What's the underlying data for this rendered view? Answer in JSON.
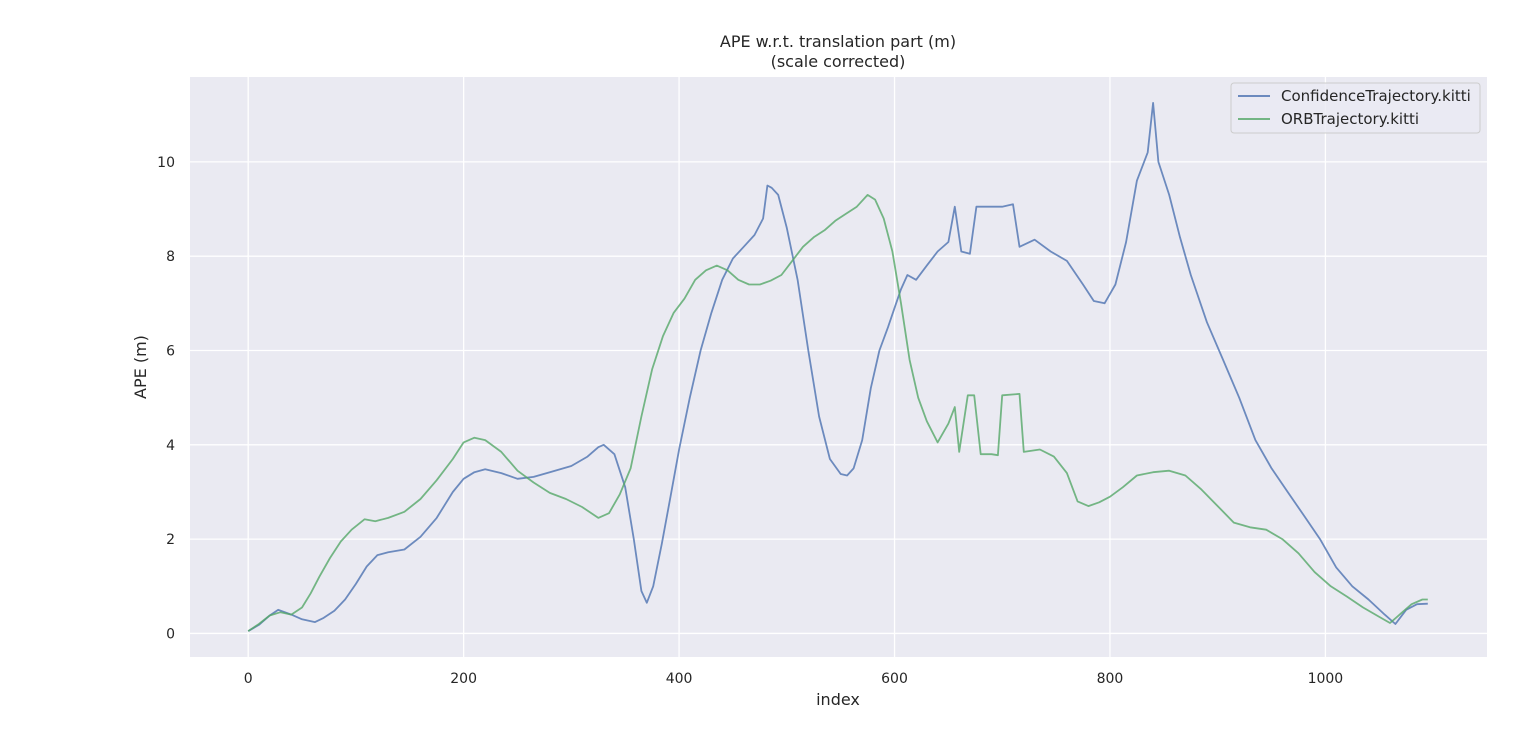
{
  "chart_data": {
    "type": "line",
    "title": "APE w.r.t. translation part (m)",
    "subtitle": "(scale corrected)",
    "xlabel": "index",
    "ylabel": "APE (m)",
    "xlim": [
      -54,
      1150
    ],
    "ylim": [
      -0.5,
      11.8
    ],
    "xticks": [
      0,
      200,
      400,
      600,
      800,
      1000
    ],
    "yticks": [
      0,
      2,
      4,
      6,
      8,
      10
    ],
    "grid": true,
    "legend_position": "top-right",
    "background": "#eaeaf2",
    "series": [
      {
        "name": "ConfidenceTrajectory.kitti",
        "color": "#4c72b0",
        "points": [
          [
            0,
            0.05
          ],
          [
            10,
            0.18
          ],
          [
            20,
            0.38
          ],
          [
            28,
            0.5
          ],
          [
            40,
            0.4
          ],
          [
            50,
            0.3
          ],
          [
            62,
            0.24
          ],
          [
            70,
            0.33
          ],
          [
            80,
            0.48
          ],
          [
            90,
            0.72
          ],
          [
            100,
            1.05
          ],
          [
            110,
            1.42
          ],
          [
            120,
            1.66
          ],
          [
            130,
            1.72
          ],
          [
            145,
            1.78
          ],
          [
            160,
            2.05
          ],
          [
            175,
            2.45
          ],
          [
            190,
            3.0
          ],
          [
            200,
            3.28
          ],
          [
            210,
            3.42
          ],
          [
            220,
            3.48
          ],
          [
            235,
            3.4
          ],
          [
            250,
            3.28
          ],
          [
            265,
            3.32
          ],
          [
            280,
            3.42
          ],
          [
            300,
            3.55
          ],
          [
            315,
            3.75
          ],
          [
            325,
            3.95
          ],
          [
            330,
            4.0
          ],
          [
            340,
            3.8
          ],
          [
            350,
            3.1
          ],
          [
            358,
            2.0
          ],
          [
            365,
            0.9
          ],
          [
            370,
            0.65
          ],
          [
            376,
            1.0
          ],
          [
            384,
            1.9
          ],
          [
            392,
            2.9
          ],
          [
            400,
            3.9
          ],
          [
            410,
            5.0
          ],
          [
            420,
            6.0
          ],
          [
            430,
            6.8
          ],
          [
            440,
            7.5
          ],
          [
            450,
            7.95
          ],
          [
            460,
            8.2
          ],
          [
            470,
            8.45
          ],
          [
            478,
            8.8
          ],
          [
            482,
            9.5
          ],
          [
            486,
            9.45
          ],
          [
            492,
            9.3
          ],
          [
            500,
            8.6
          ],
          [
            510,
            7.5
          ],
          [
            520,
            6.0
          ],
          [
            530,
            4.6
          ],
          [
            540,
            3.7
          ],
          [
            550,
            3.38
          ],
          [
            556,
            3.35
          ],
          [
            562,
            3.5
          ],
          [
            570,
            4.1
          ],
          [
            578,
            5.2
          ],
          [
            586,
            6.0
          ],
          [
            594,
            6.5
          ],
          [
            600,
            6.9
          ],
          [
            606,
            7.3
          ],
          [
            612,
            7.6
          ],
          [
            620,
            7.5
          ],
          [
            630,
            7.8
          ],
          [
            640,
            8.1
          ],
          [
            650,
            8.3
          ],
          [
            656,
            9.05
          ],
          [
            662,
            8.1
          ],
          [
            670,
            8.05
          ],
          [
            676,
            9.05
          ],
          [
            700,
            9.05
          ],
          [
            710,
            9.1
          ],
          [
            716,
            8.2
          ],
          [
            730,
            8.35
          ],
          [
            745,
            8.1
          ],
          [
            760,
            7.9
          ],
          [
            775,
            7.4
          ],
          [
            785,
            7.05
          ],
          [
            795,
            7.0
          ],
          [
            805,
            7.4
          ],
          [
            815,
            8.3
          ],
          [
            825,
            9.6
          ],
          [
            835,
            10.2
          ],
          [
            840,
            11.25
          ],
          [
            845,
            10.0
          ],
          [
            855,
            9.3
          ],
          [
            865,
            8.4
          ],
          [
            875,
            7.6
          ],
          [
            890,
            6.6
          ],
          [
            905,
            5.8
          ],
          [
            920,
            5.0
          ],
          [
            935,
            4.1
          ],
          [
            950,
            3.5
          ],
          [
            965,
            3.0
          ],
          [
            980,
            2.5
          ],
          [
            995,
            2.0
          ],
          [
            1010,
            1.4
          ],
          [
            1025,
            1.0
          ],
          [
            1040,
            0.72
          ],
          [
            1055,
            0.4
          ],
          [
            1065,
            0.2
          ],
          [
            1075,
            0.5
          ],
          [
            1085,
            0.62
          ],
          [
            1095,
            0.63
          ]
        ]
      },
      {
        "name": "ORBTrajectory.kitti",
        "color": "#55a868",
        "points": [
          [
            0,
            0.05
          ],
          [
            10,
            0.2
          ],
          [
            20,
            0.38
          ],
          [
            30,
            0.45
          ],
          [
            40,
            0.4
          ],
          [
            50,
            0.55
          ],
          [
            58,
            0.85
          ],
          [
            66,
            1.2
          ],
          [
            76,
            1.6
          ],
          [
            86,
            1.95
          ],
          [
            96,
            2.2
          ],
          [
            108,
            2.42
          ],
          [
            118,
            2.38
          ],
          [
            130,
            2.45
          ],
          [
            145,
            2.58
          ],
          [
            160,
            2.85
          ],
          [
            175,
            3.25
          ],
          [
            190,
            3.7
          ],
          [
            200,
            4.05
          ],
          [
            210,
            4.15
          ],
          [
            220,
            4.1
          ],
          [
            235,
            3.85
          ],
          [
            250,
            3.45
          ],
          [
            265,
            3.2
          ],
          [
            280,
            2.98
          ],
          [
            295,
            2.85
          ],
          [
            310,
            2.68
          ],
          [
            325,
            2.45
          ],
          [
            335,
            2.55
          ],
          [
            345,
            2.95
          ],
          [
            355,
            3.5
          ],
          [
            365,
            4.6
          ],
          [
            375,
            5.6
          ],
          [
            385,
            6.3
          ],
          [
            395,
            6.8
          ],
          [
            405,
            7.1
          ],
          [
            415,
            7.5
          ],
          [
            425,
            7.7
          ],
          [
            435,
            7.8
          ],
          [
            445,
            7.7
          ],
          [
            455,
            7.5
          ],
          [
            465,
            7.4
          ],
          [
            475,
            7.4
          ],
          [
            485,
            7.48
          ],
          [
            495,
            7.6
          ],
          [
            505,
            7.9
          ],
          [
            515,
            8.2
          ],
          [
            525,
            8.4
          ],
          [
            535,
            8.55
          ],
          [
            545,
            8.75
          ],
          [
            555,
            8.9
          ],
          [
            565,
            9.05
          ],
          [
            575,
            9.3
          ],
          [
            582,
            9.2
          ],
          [
            590,
            8.8
          ],
          [
            598,
            8.1
          ],
          [
            606,
            7.0
          ],
          [
            614,
            5.8
          ],
          [
            622,
            5.0
          ],
          [
            630,
            4.5
          ],
          [
            640,
            4.05
          ],
          [
            650,
            4.45
          ],
          [
            656,
            4.8
          ],
          [
            660,
            3.85
          ],
          [
            668,
            5.05
          ],
          [
            674,
            5.05
          ],
          [
            680,
            3.8
          ],
          [
            690,
            3.8
          ],
          [
            696,
            3.78
          ],
          [
            700,
            5.05
          ],
          [
            716,
            5.08
          ],
          [
            720,
            3.85
          ],
          [
            735,
            3.9
          ],
          [
            748,
            3.75
          ],
          [
            760,
            3.4
          ],
          [
            770,
            2.8
          ],
          [
            780,
            2.7
          ],
          [
            790,
            2.78
          ],
          [
            800,
            2.9
          ],
          [
            812,
            3.1
          ],
          [
            825,
            3.35
          ],
          [
            840,
            3.42
          ],
          [
            855,
            3.45
          ],
          [
            870,
            3.35
          ],
          [
            885,
            3.05
          ],
          [
            900,
            2.7
          ],
          [
            915,
            2.35
          ],
          [
            930,
            2.25
          ],
          [
            945,
            2.2
          ],
          [
            960,
            2.0
          ],
          [
            975,
            1.7
          ],
          [
            990,
            1.3
          ],
          [
            1005,
            1.0
          ],
          [
            1020,
            0.78
          ],
          [
            1035,
            0.55
          ],
          [
            1050,
            0.35
          ],
          [
            1060,
            0.22
          ],
          [
            1070,
            0.42
          ],
          [
            1080,
            0.62
          ],
          [
            1090,
            0.72
          ],
          [
            1095,
            0.72
          ]
        ]
      }
    ]
  }
}
